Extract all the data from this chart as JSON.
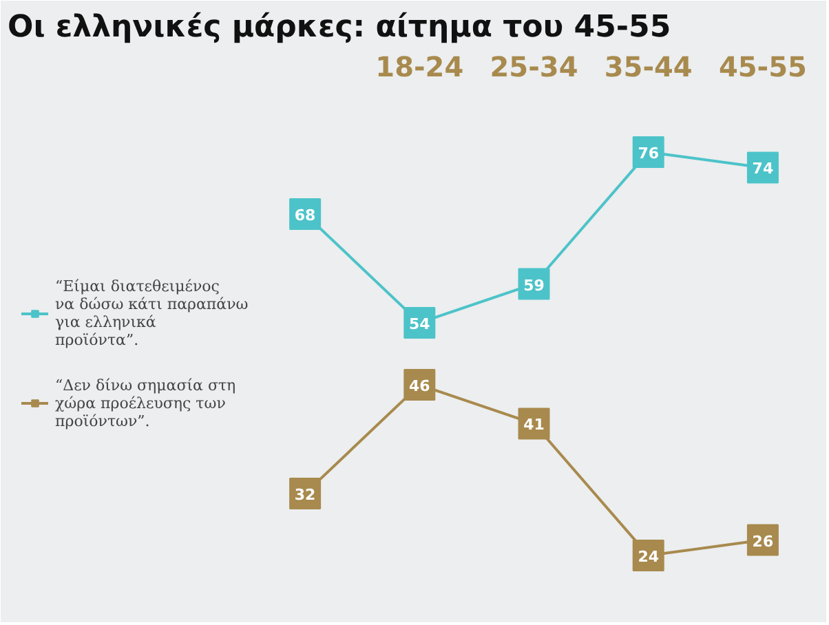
{
  "chart_data": {
    "type": "line",
    "title": "Οι ελληνικές μάρκες: αίτημα του 45-55",
    "categories": [
      null,
      "18-24",
      "25-34",
      "35-44",
      "45-55"
    ],
    "series": [
      {
        "name": "“Είμαι διατεθειμένος να δώσω κάτι παραπάνω για ελληνικά προϊόντα”.",
        "color": "#4cc3c9",
        "values": [
          68,
          54,
          59,
          76,
          74
        ]
      },
      {
        "name": "“Δεν δίνω σημασία στη χώρα προέλευσης των προϊόντων”.",
        "color": "#a88a4e",
        "values": [
          32,
          46,
          41,
          24,
          26
        ]
      }
    ],
    "data_labels": true,
    "marker": "square",
    "legend": "left",
    "grid": false
  }
}
